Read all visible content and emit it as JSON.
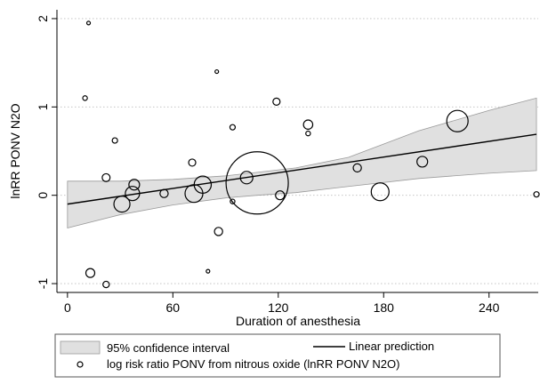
{
  "chart_data": {
    "type": "scatter",
    "xlabel": "Duration of anesthesia",
    "ylabel": "lnRR PONV N2O",
    "xlim": [
      -6,
      268
    ],
    "ylim": [
      -1.1,
      2.1
    ],
    "xticks": [
      0,
      60,
      120,
      180,
      240
    ],
    "yticks": [
      -1,
      0,
      1,
      2
    ],
    "grid": "horizontal dotted at y ticks",
    "legend_placement": "bottom",
    "legend": {
      "ci_label": "95% confidence interval",
      "line_label": "Linear prediction",
      "marker_label": "log risk ratio PONV from nitrous oxide (lnRR PONV N2O)"
    },
    "series": [
      {
        "name": "log risk ratio PONV from nitrous oxide (lnRR PONV N2O)",
        "kind": "weighted-scatter",
        "points": [
          {
            "x": 12,
            "y": 1.95,
            "w": 1.0
          },
          {
            "x": 10,
            "y": 1.1,
            "w": 1.3
          },
          {
            "x": 13,
            "y": -0.88,
            "w": 2.5
          },
          {
            "x": 22,
            "y": -1.01,
            "w": 1.8
          },
          {
            "x": 22,
            "y": 0.2,
            "w": 2.2
          },
          {
            "x": 27,
            "y": 0.62,
            "w": 1.5
          },
          {
            "x": 31,
            "y": -0.1,
            "w": 4.5
          },
          {
            "x": 37,
            "y": 0.02,
            "w": 4.0
          },
          {
            "x": 38,
            "y": 0.12,
            "w": 3.0
          },
          {
            "x": 55,
            "y": 0.02,
            "w": 2.3
          },
          {
            "x": 71,
            "y": 0.37,
            "w": 2.0
          },
          {
            "x": 72,
            "y": 0.02,
            "w": 5.0
          },
          {
            "x": 77,
            "y": 0.12,
            "w": 4.8
          },
          {
            "x": 80,
            "y": -0.86,
            "w": 1.0
          },
          {
            "x": 85,
            "y": 1.4,
            "w": 1.0
          },
          {
            "x": 86,
            "y": -0.41,
            "w": 2.3
          },
          {
            "x": 94,
            "y": 0.77,
            "w": 1.5
          },
          {
            "x": 94,
            "y": -0.07,
            "w": 1.3
          },
          {
            "x": 102,
            "y": 0.2,
            "w": 3.5
          },
          {
            "x": 108,
            "y": 0.14,
            "w": 17.5
          },
          {
            "x": 119,
            "y": 1.06,
            "w": 2.0
          },
          {
            "x": 121,
            "y": 0.0,
            "w": 2.5
          },
          {
            "x": 137,
            "y": 0.8,
            "w": 2.6
          },
          {
            "x": 137,
            "y": 0.7,
            "w": 1.3
          },
          {
            "x": 165,
            "y": 0.31,
            "w": 2.3
          },
          {
            "x": 178,
            "y": 0.04,
            "w": 5.0
          },
          {
            "x": 202,
            "y": 0.38,
            "w": 3.0
          },
          {
            "x": 222,
            "y": 0.84,
            "w": 6.0
          },
          {
            "x": 267,
            "y": 0.01,
            "w": 1.5
          }
        ]
      },
      {
        "name": "Linear prediction",
        "kind": "line",
        "x": [
          0,
          267
        ],
        "y": [
          -0.1,
          0.69
        ]
      },
      {
        "name": "95% confidence interval",
        "kind": "band",
        "x": [
          0,
          30,
          60,
          90,
          108,
          130,
          160,
          200,
          240,
          267
        ],
        "lower": [
          -0.37,
          -0.22,
          -0.11,
          -0.03,
          0.0,
          0.03,
          0.1,
          0.19,
          0.25,
          0.28
        ],
        "upper": [
          0.16,
          0.16,
          0.18,
          0.22,
          0.26,
          0.31,
          0.43,
          0.73,
          0.96,
          1.1
        ]
      }
    ]
  }
}
